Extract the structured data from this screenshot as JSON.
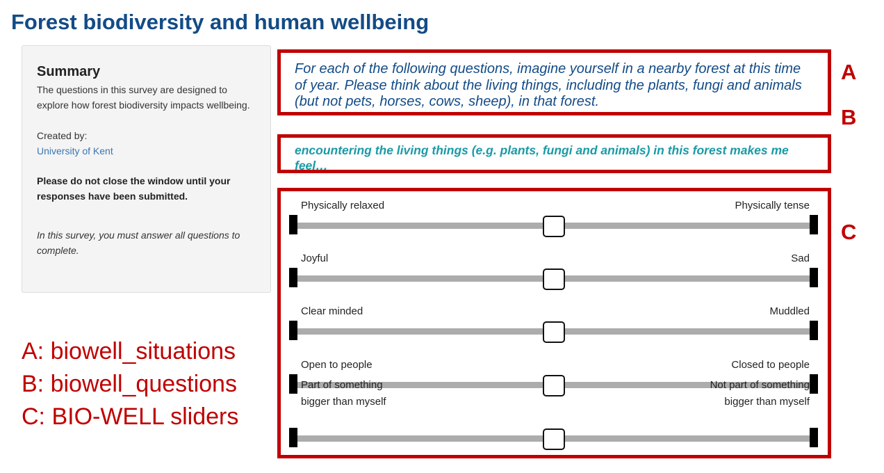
{
  "page_title": "Forest biodiversity and human wellbeing",
  "summary": {
    "heading": "Summary",
    "description": "The questions in this survey are designed to explore how forest biodiversity impacts wellbeing.",
    "created_label": "Created by:",
    "creator": "University of Kent",
    "warning": "Please do not close the window until your responses have been submitted.",
    "note": "In this survey, you must answer all questions to complete."
  },
  "situation": "For each of the following questions, imagine yourself in a nearby forest at this time of year. Please think about the living things, including the plants, fungi and animals (but not pets, horses, cows, sheep), in that forest.",
  "question": "encountering the living things (e.g. plants, fungi and animals) in this forest makes me feel…",
  "sliders": [
    {
      "left": "Physically relaxed",
      "right": "Physically tense",
      "value": 0.5
    },
    {
      "left": "Joyful",
      "right": "Sad",
      "value": 0.5
    },
    {
      "left": "Clear minded",
      "right": "Muddled",
      "value": 0.5
    },
    {
      "left": "Open to people",
      "right": "Closed to people",
      "value": 0.5
    },
    {
      "left": "Part of something bigger than myself",
      "right": "Not part of something bigger than myself",
      "value": 0.5
    }
  ],
  "annotations": {
    "letter_a": "A",
    "letter_b": "B",
    "letter_c": "C",
    "legend_a": "A: biowell_situations",
    "legend_b": "B: biowell_questions",
    "legend_c": "C: BIO-WELL sliders"
  },
  "colors": {
    "title": "#134b86",
    "situation_text": "#134b86",
    "question_text": "#1a9aa6",
    "annotation_red": "#c00000",
    "link": "#3a76b4"
  }
}
